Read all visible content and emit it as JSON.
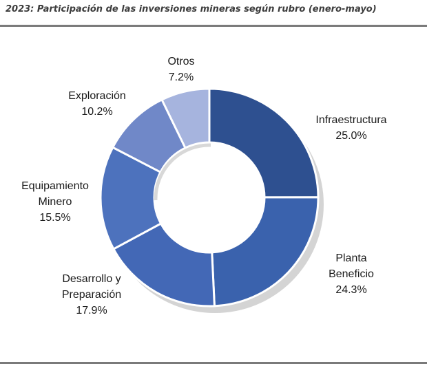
{
  "chart_data": {
    "type": "pie",
    "title": "2023: Participación de las inversiones mineras según rubro (enero-mayo)",
    "donut": true,
    "slices": [
      {
        "label": [
          "Infraestructura"
        ],
        "value": 25.0,
        "value_label": "25.0%",
        "color": "#2e5090"
      },
      {
        "label": [
          "Planta",
          "Beneficio"
        ],
        "value": 24.3,
        "value_label": "24.3%",
        "color": "#3a62ad"
      },
      {
        "label": [
          "Desarrollo y",
          "Preparación"
        ],
        "value": 17.9,
        "value_label": "17.9%",
        "color": "#4368b6"
      },
      {
        "label": [
          "Equipamiento",
          "Minero"
        ],
        "value": 15.5,
        "value_label": "15.5%",
        "color": "#4d72bd"
      },
      {
        "label": [
          "Exploración"
        ],
        "value": 10.2,
        "value_label": "10.2%",
        "color": "#7088c8"
      },
      {
        "label": [
          "Otros"
        ],
        "value": 7.2,
        "value_label": "7.2%",
        "color": "#a6b4de"
      }
    ]
  }
}
